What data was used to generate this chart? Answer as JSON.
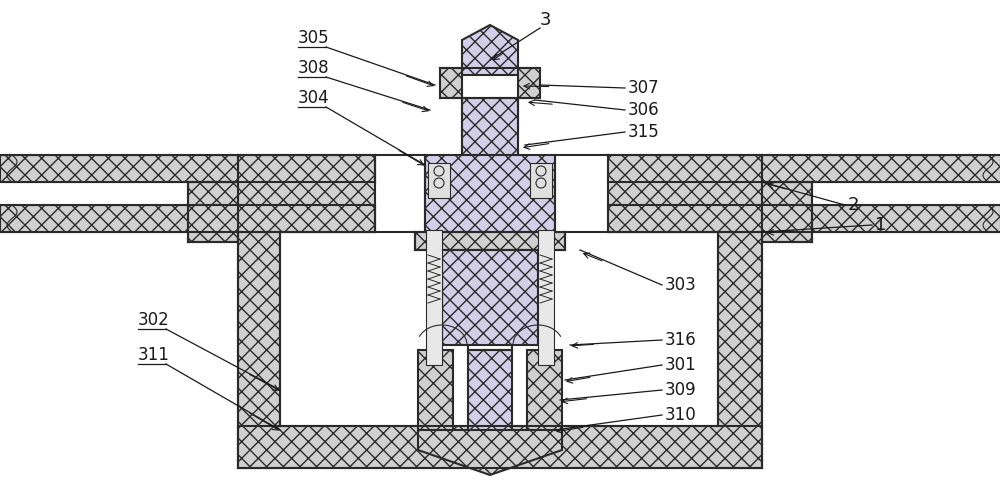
{
  "bg_color": "#ffffff",
  "line_color": "#2a2a2a",
  "hatch_fill": "#d4cfe8",
  "hatch_fill2": "#d0d0d0",
  "figsize": [
    10.0,
    4.86
  ],
  "dpi": 100,
  "aspect": "auto"
}
